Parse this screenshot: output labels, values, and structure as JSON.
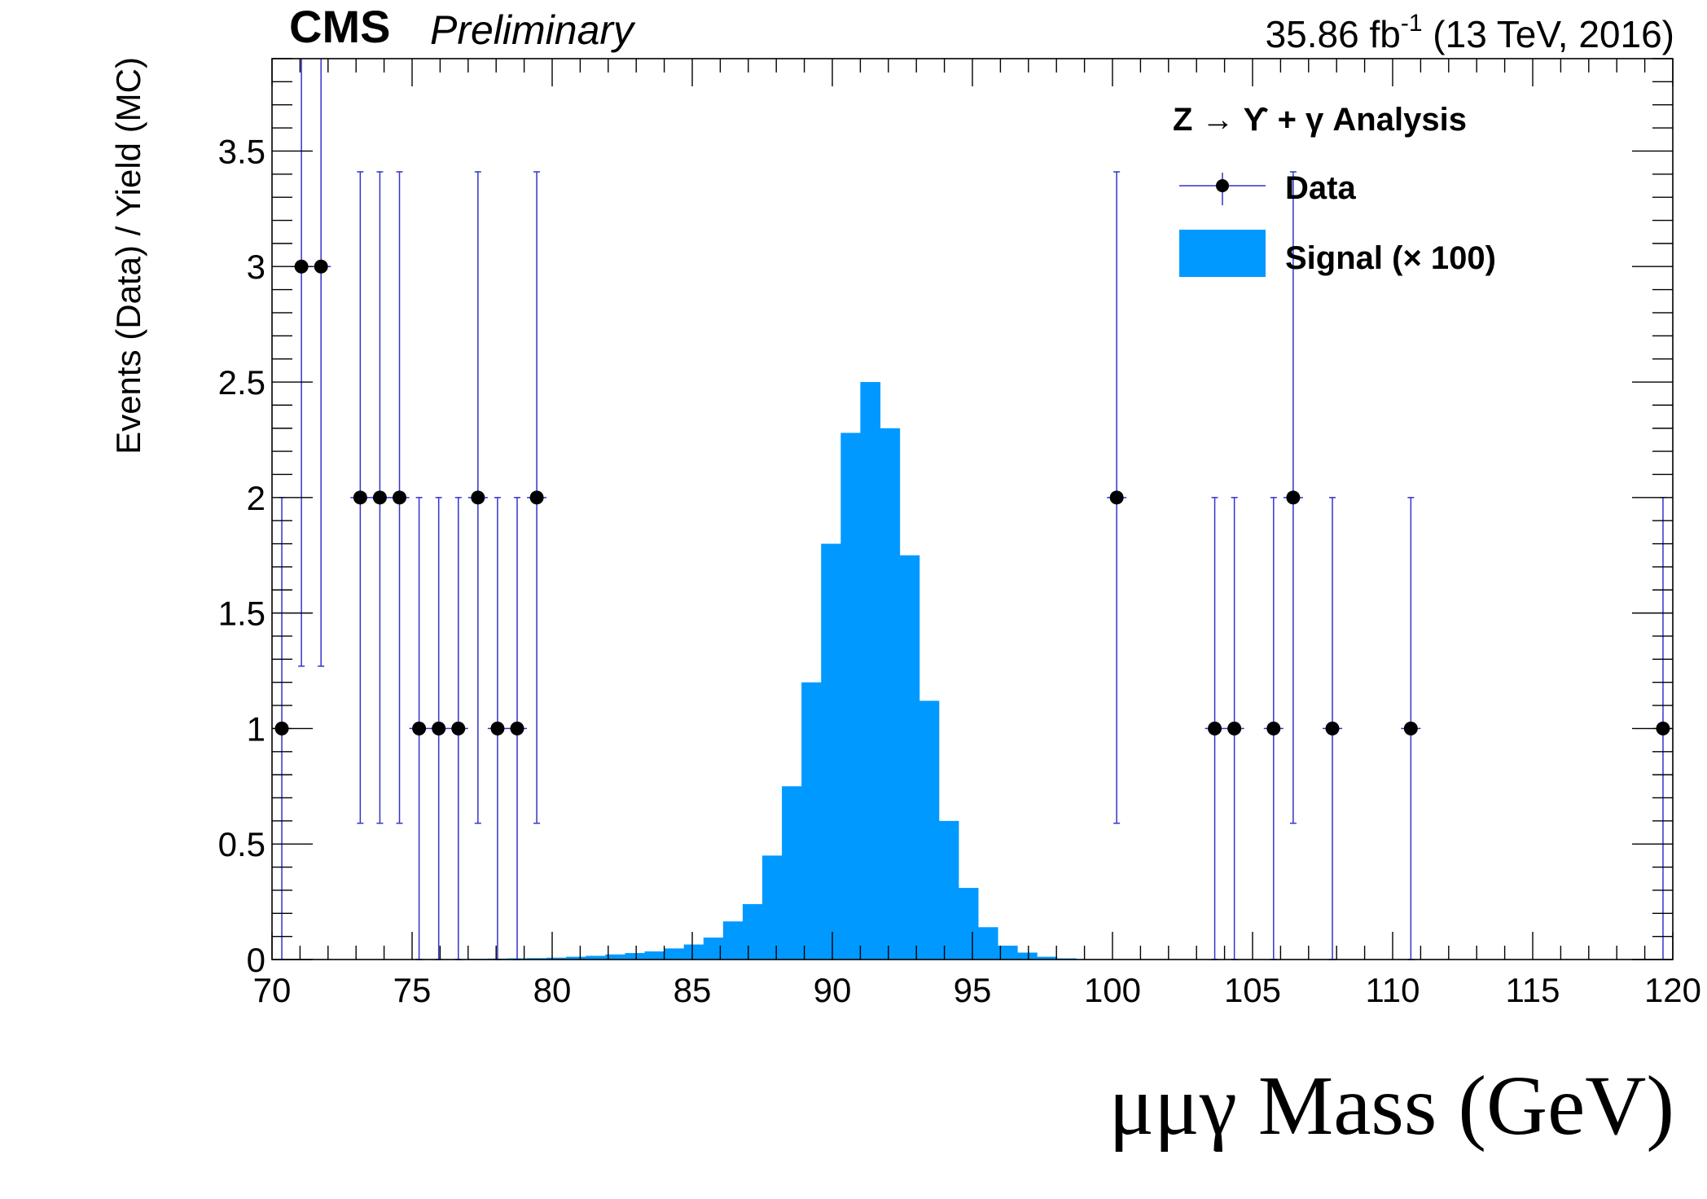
{
  "chart_data": {
    "type": "histogram",
    "header": {
      "experiment": "CMS",
      "status": "Preliminary",
      "lumi_value": "35.86 fb",
      "lumi_exponent": "-1",
      "lumi_conditions": " (13 TeV, 2016)"
    },
    "xlabel": "μμγ Mass (GeV)",
    "ylabel": "Events (Data) / Yield (MC)",
    "xlim": [
      70,
      120
    ],
    "ylim": [
      0,
      3.9
    ],
    "x_ticks": [
      "70",
      "75",
      "80",
      "85",
      "90",
      "95",
      "100",
      "105",
      "110",
      "115",
      "120"
    ],
    "y_ticks": [
      "0",
      "0.5",
      "1",
      "1.5",
      "2",
      "2.5",
      "3",
      "3.5"
    ],
    "legend": {
      "placement": "top-right",
      "title": "Z → ϒ + γ Analysis",
      "entries": [
        "Data",
        "Signal (× 100)"
      ]
    },
    "colors": {
      "signal": "#0099ff",
      "data_marker": "#000000",
      "error_bar": "#3333cc",
      "axis": "#000000"
    },
    "series": [
      {
        "name": "Data",
        "kind": "points-with-errors",
        "points": [
          {
            "x": 70.35,
            "y": 1,
            "err_lo": 1.0,
            "err_hi": 1.0
          },
          {
            "x": 71.05,
            "y": 3,
            "err_lo": 1.73,
            "err_hi": 1.73
          },
          {
            "x": 71.75,
            "y": 3,
            "err_lo": 1.73,
            "err_hi": 1.73
          },
          {
            "x": 73.15,
            "y": 2,
            "err_lo": 1.41,
            "err_hi": 1.41
          },
          {
            "x": 73.85,
            "y": 2,
            "err_lo": 1.41,
            "err_hi": 1.41
          },
          {
            "x": 74.55,
            "y": 2,
            "err_lo": 1.41,
            "err_hi": 1.41
          },
          {
            "x": 75.25,
            "y": 1,
            "err_lo": 1.0,
            "err_hi": 1.0
          },
          {
            "x": 75.95,
            "y": 1,
            "err_lo": 1.0,
            "err_hi": 1.0
          },
          {
            "x": 76.65,
            "y": 1,
            "err_lo": 1.0,
            "err_hi": 1.0
          },
          {
            "x": 77.35,
            "y": 2,
            "err_lo": 1.41,
            "err_hi": 1.41
          },
          {
            "x": 78.05,
            "y": 1,
            "err_lo": 1.0,
            "err_hi": 1.0
          },
          {
            "x": 78.75,
            "y": 1,
            "err_lo": 1.0,
            "err_hi": 1.0
          },
          {
            "x": 79.45,
            "y": 2,
            "err_lo": 1.41,
            "err_hi": 1.41
          },
          {
            "x": 100.15,
            "y": 2,
            "err_lo": 1.41,
            "err_hi": 1.41
          },
          {
            "x": 103.65,
            "y": 1,
            "err_lo": 1.0,
            "err_hi": 1.0
          },
          {
            "x": 104.35,
            "y": 1,
            "err_lo": 1.0,
            "err_hi": 1.0
          },
          {
            "x": 105.75,
            "y": 1,
            "err_lo": 1.0,
            "err_hi": 1.0
          },
          {
            "x": 106.45,
            "y": 2,
            "err_lo": 1.41,
            "err_hi": 1.41
          },
          {
            "x": 107.85,
            "y": 1,
            "err_lo": 1.0,
            "err_hi": 1.0
          },
          {
            "x": 110.65,
            "y": 1,
            "err_lo": 1.0,
            "err_hi": 1.0
          },
          {
            "x": 119.65,
            "y": 1,
            "err_lo": 1.0,
            "err_hi": 1.0
          }
        ]
      },
      {
        "name": "Signal (× 100)",
        "kind": "filled-histogram",
        "bin_edges": [
          77.0,
          77.7,
          78.4,
          79.1,
          79.8,
          80.5,
          81.2,
          81.9,
          82.6,
          83.3,
          84.0,
          84.7,
          85.4,
          86.1,
          86.8,
          87.5,
          88.2,
          88.9,
          89.6,
          90.3,
          91.0,
          91.7,
          92.4,
          93.1,
          93.8,
          94.5,
          95.2,
          95.9,
          96.6,
          97.3,
          98.0,
          98.7
        ],
        "values": [
          0.003,
          0.004,
          0.005,
          0.006,
          0.008,
          0.012,
          0.016,
          0.022,
          0.028,
          0.035,
          0.048,
          0.065,
          0.095,
          0.165,
          0.24,
          0.45,
          0.75,
          1.2,
          1.8,
          2.28,
          2.5,
          2.3,
          1.75,
          1.12,
          0.6,
          0.31,
          0.14,
          0.06,
          0.03,
          0.012,
          0.005
        ]
      }
    ]
  }
}
